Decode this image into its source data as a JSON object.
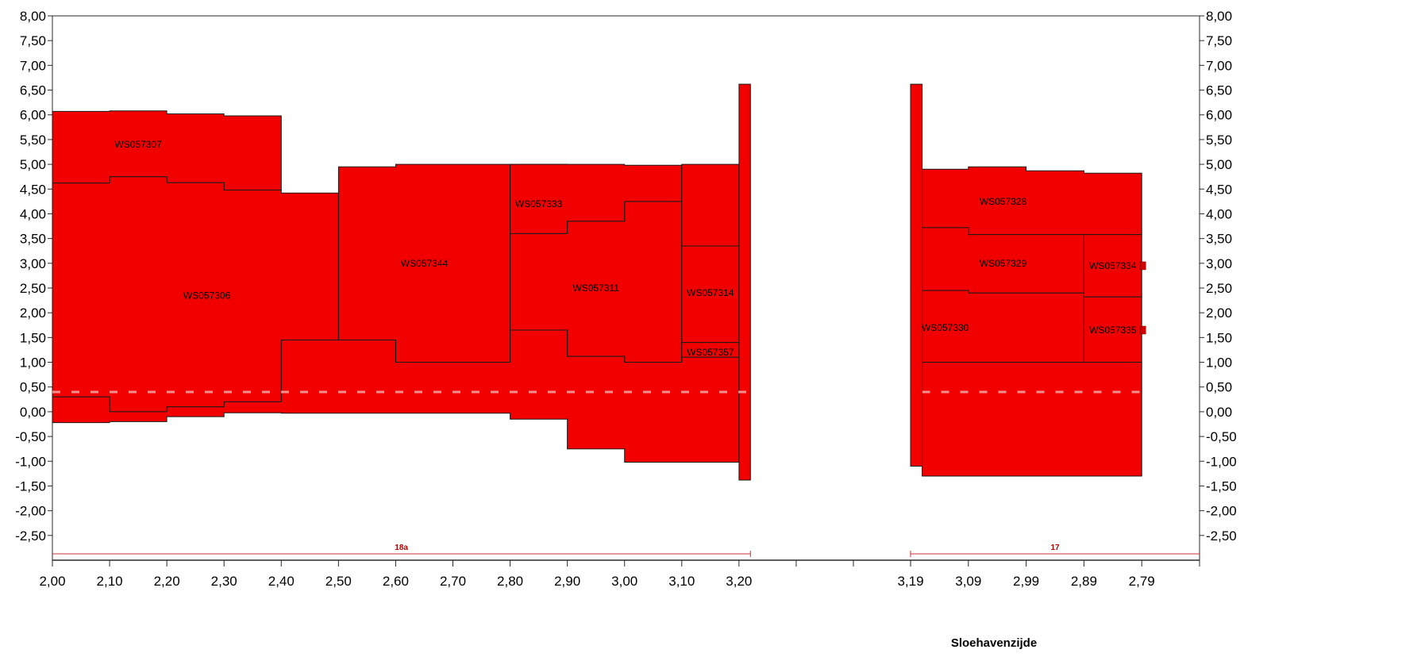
{
  "chart_data": {
    "type": "area",
    "title": "",
    "xlabel": "Sloehavenzijde",
    "ylabel": "",
    "ylim": [
      -3.0,
      8.0
    ],
    "grid": false,
    "legend": "none",
    "colors": {
      "fill": "#f20000",
      "stroke": "#1a1a1a",
      "section_line": "#c83232",
      "axis": "#2a2a2a"
    },
    "y_ticks": [
      "8,00",
      "7,50",
      "7,00",
      "6,50",
      "6,00",
      "5,50",
      "5,00",
      "4,50",
      "4,00",
      "3,50",
      "3,00",
      "2,50",
      "2,00",
      "1,50",
      "1,00",
      "0,50",
      "0,00",
      "-0,50",
      "-1,00",
      "-1,50",
      "-2,00",
      "-2,50"
    ],
    "x_ticks": [
      "2,00",
      "2,10",
      "2,20",
      "2,30",
      "2,40",
      "2,50",
      "2,60",
      "2,70",
      "2,80",
      "2,90",
      "3,00",
      "3,10",
      "3,20",
      "",
      "",
      "",
      "3,19",
      "3,09",
      "2,99",
      "2,89",
      "2,79"
    ],
    "sections": [
      {
        "name": "18a",
        "x_range": [
          2.0,
          3.22
        ]
      },
      {
        "name": "17",
        "x_range": [
          3.19,
          2.69
        ]
      }
    ],
    "layers": [
      {
        "label": "WS057307",
        "label_pos": [
          2.15,
          5.4
        ],
        "x": [
          2.0,
          2.1,
          2.2,
          2.3,
          2.4
        ],
        "top": [
          6.07,
          6.08,
          6.02,
          5.98
        ],
        "bottom": [
          4.62,
          4.75,
          4.63,
          4.48
        ]
      },
      {
        "label": "WS057306",
        "label_pos": [
          2.27,
          2.35
        ],
        "x": [
          2.0,
          2.1,
          2.2,
          2.3,
          2.4,
          2.5
        ],
        "top": [
          4.62,
          4.75,
          4.63,
          4.48,
          4.42
        ],
        "bottom": [
          0.3,
          0.0,
          0.1,
          0.2,
          1.45
        ]
      },
      {
        "label": "WS057344",
        "label_pos": [
          2.65,
          3.0
        ],
        "x": [
          2.5,
          2.6,
          2.8
        ],
        "top": [
          4.95,
          5.0
        ],
        "bottom": [
          1.45,
          1.0
        ]
      },
      {
        "label": "WS057333",
        "label_pos": [
          2.85,
          4.2
        ],
        "x": [
          2.8,
          2.9
        ],
        "top": [
          5.0
        ],
        "bottom": [
          3.6
        ]
      },
      {
        "label": "WS057311",
        "label_pos": [
          2.95,
          2.5
        ],
        "x": [
          2.8,
          2.9,
          3.0,
          3.1
        ],
        "top": [
          3.6,
          3.85,
          4.25
        ],
        "bottom": [
          1.65,
          1.12,
          1.0
        ]
      },
      {
        "label": "WS057314",
        "label_pos": [
          3.15,
          2.4
        ],
        "x": [
          3.1,
          3.2
        ],
        "top": [
          3.35
        ],
        "bottom": [
          1.4
        ]
      },
      {
        "label": "WS057357",
        "label_pos": [
          3.15,
          1.2
        ],
        "x": [
          3.1,
          3.2
        ],
        "top": [
          1.4
        ],
        "bottom": [
          1.1
        ]
      },
      {
        "label": "",
        "x": [
          2.0,
          2.1,
          2.2,
          2.3,
          2.4,
          2.5,
          2.6,
          2.8,
          2.9,
          3.0,
          3.1,
          3.2
        ],
        "top": [
          0.3,
          0.0,
          0.1,
          0.2,
          1.45,
          1.45,
          1.0,
          1.65,
          1.12,
          1.0,
          1.1
        ],
        "bottom": [
          -0.22,
          -0.2,
          -0.1,
          -0.02,
          -0.03,
          -0.03,
          -0.03,
          -0.15,
          -0.75,
          -1.02,
          -1.02
        ]
      },
      {
        "label": "",
        "x": [
          2.8,
          2.9,
          3.0,
          3.1
        ],
        "top": [
          5.0,
          5.0,
          4.98
        ],
        "bottom": [
          3.6,
          3.85,
          4.25
        ]
      },
      {
        "label": "",
        "x": [
          3.1,
          3.2
        ],
        "top": [
          5.0
        ],
        "bottom": [
          3.35
        ]
      },
      {
        "label": "",
        "x": [
          3.2,
          3.22
        ],
        "top": [
          6.62
        ],
        "bottom": [
          -1.38
        ]
      },
      {
        "label": "",
        "x": [
          3.19,
          3.17
        ],
        "top": [
          6.62
        ],
        "bottom": [
          -1.1
        ]
      },
      {
        "label": "WS057328",
        "label_pos": [
          3.03,
          4.25
        ],
        "x": [
          3.17,
          3.09,
          2.99,
          2.89,
          2.79
        ],
        "top": [
          4.9,
          4.95,
          4.87,
          4.82
        ],
        "bottom": [
          3.72,
          3.58,
          3.58,
          3.58
        ]
      },
      {
        "label": "WS057329",
        "label_pos": [
          3.03,
          3.0
        ],
        "x": [
          3.17,
          3.09,
          2.89
        ],
        "top": [
          3.72,
          3.58
        ],
        "bottom": [
          2.45,
          2.4
        ]
      },
      {
        "label": "WS057330",
        "label_pos": [
          3.13,
          1.7
        ],
        "x": [
          3.17,
          3.09,
          2.89
        ],
        "top": [
          2.45,
          2.4
        ],
        "bottom": [
          1.0,
          1.0
        ]
      },
      {
        "label": "",
        "x": [
          3.17,
          3.09,
          2.99,
          2.89,
          2.79
        ],
        "top": [
          1.0,
          1.0,
          1.0,
          1.0
        ],
        "bottom": [
          -1.3,
          -1.3,
          -1.3,
          -1.3
        ]
      },
      {
        "label": "WS057334",
        "label_pos": [
          2.84,
          2.95
        ],
        "x": [
          2.89,
          2.79
        ],
        "top": [
          3.58
        ],
        "bottom": [
          2.32
        ]
      },
      {
        "label": "WS057335",
        "label_pos": [
          2.84,
          1.65
        ],
        "x": [
          2.89,
          2.79
        ],
        "top": [
          2.32
        ],
        "bottom": [
          1.0
        ]
      }
    ]
  }
}
